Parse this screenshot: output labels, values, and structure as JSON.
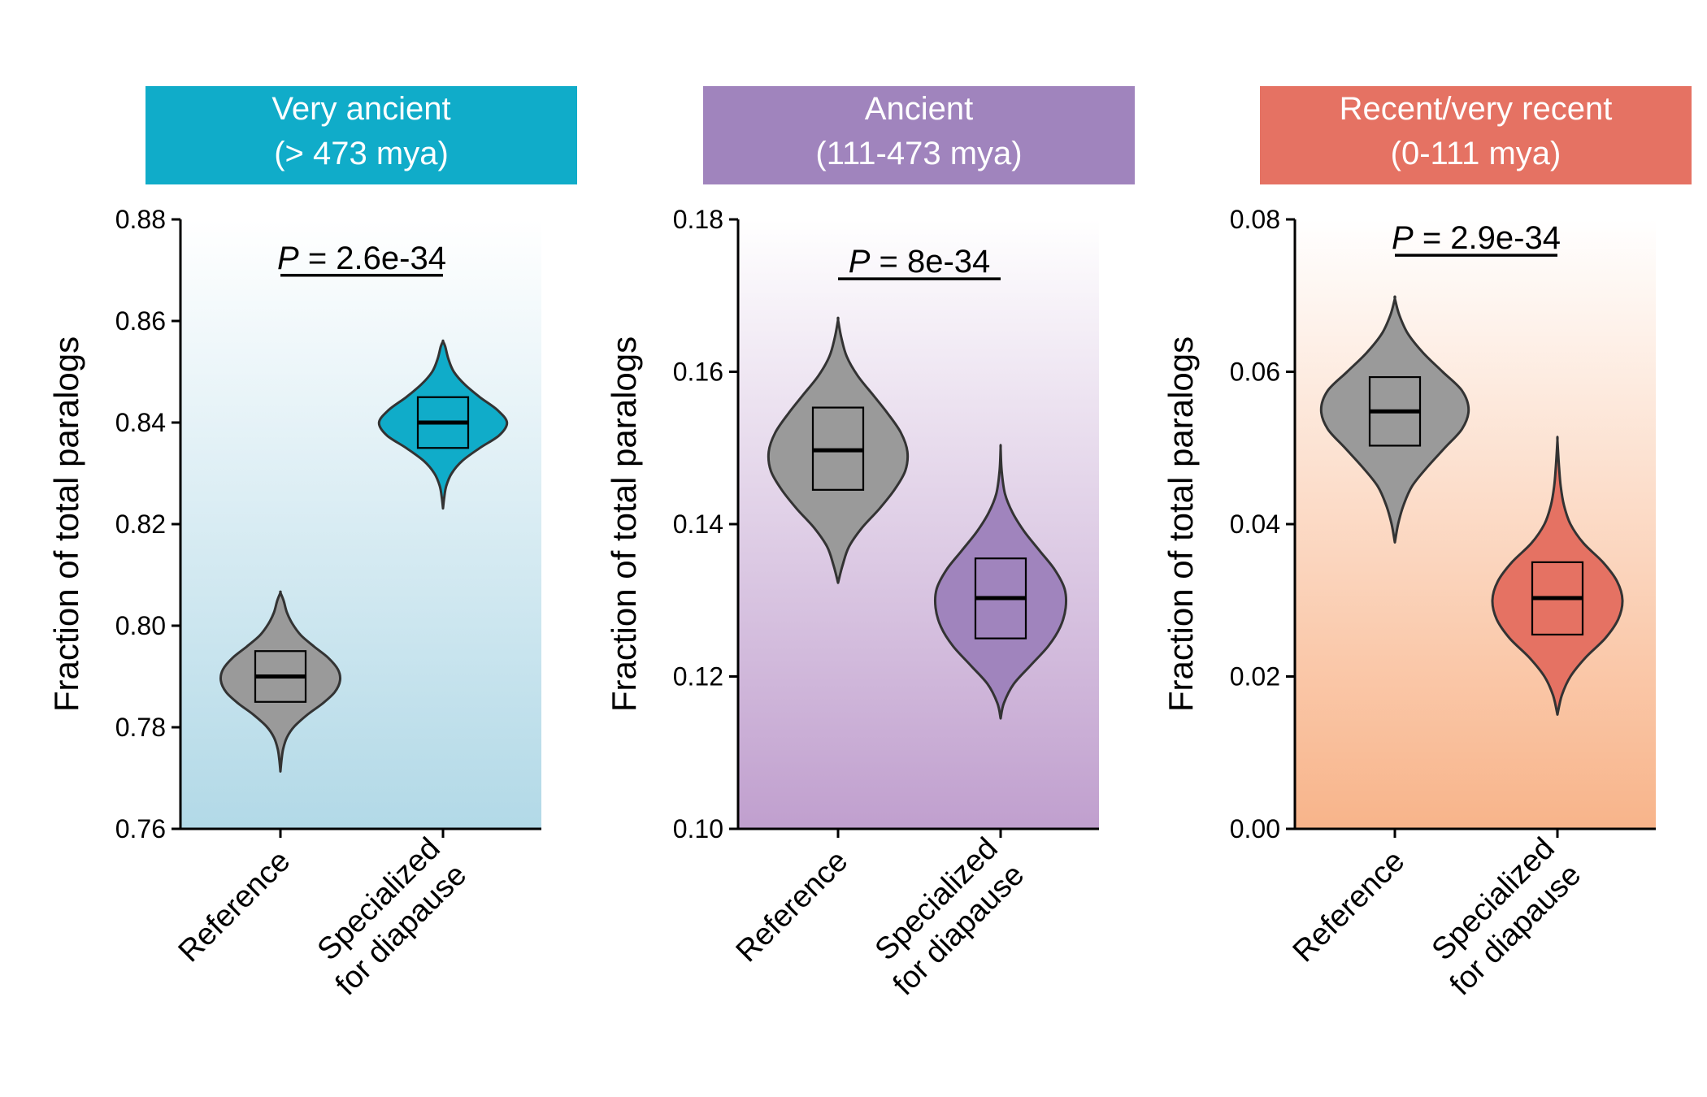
{
  "chart_data": [
    {
      "type": "violin",
      "title": "Very ancient",
      "subtitle": "(> 473 mya)",
      "title_bg": "#10ACC9",
      "gradient_top": "#FFFFFF",
      "gradient_bottom": "#B2D9E7",
      "accent": "#10ACC9",
      "ylabel": "Fraction of total paralogs",
      "ylim": [
        0.76,
        0.88
      ],
      "yticks": [
        0.76,
        0.78,
        0.8,
        0.82,
        0.84,
        0.86,
        0.88
      ],
      "ytick_labels": [
        "0.76",
        "0.78",
        "0.80",
        "0.82",
        "0.84",
        "0.86",
        "0.88"
      ],
      "categories": [
        "Reference",
        "Specialized for diapause"
      ],
      "category_lines": [
        [
          "Reference"
        ],
        [
          "Specialized",
          "for diapause"
        ]
      ],
      "p_prefix": "P",
      "p_text": " = 2.6e-34",
      "p_line_y": 0.869,
      "groups": [
        {
          "name": "Reference",
          "color": "#9A9A9A",
          "median": 0.79,
          "q1": 0.785,
          "q3": 0.795,
          "density": [
            [
              0.7713,
              0
            ],
            [
              0.7735,
              1
            ],
            [
              0.7757,
              2.5
            ],
            [
              0.778,
              6
            ],
            [
              0.7802,
              13
            ],
            [
              0.7825,
              25
            ],
            [
              0.7847,
              39
            ],
            [
              0.7869,
              50
            ],
            [
              0.7892,
              55
            ],
            [
              0.7914,
              53
            ],
            [
              0.7937,
              44
            ],
            [
              0.7959,
              31
            ],
            [
              0.7981,
              19
            ],
            [
              0.8004,
              11
            ],
            [
              0.8026,
              6
            ],
            [
              0.8049,
              3
            ],
            [
              0.8065,
              0
            ]
          ]
        },
        {
          "name": "Specialized for diapause",
          "color": "#10ACC9",
          "median": 0.84,
          "q1": 0.835,
          "q3": 0.845,
          "density": [
            [
              0.8231,
              0
            ],
            [
              0.825,
              1
            ],
            [
              0.8275,
              3
            ],
            [
              0.83,
              8
            ],
            [
              0.8325,
              18
            ],
            [
              0.835,
              34
            ],
            [
              0.8375,
              52
            ],
            [
              0.84,
              59
            ],
            [
              0.8425,
              50
            ],
            [
              0.845,
              34
            ],
            [
              0.8475,
              20
            ],
            [
              0.85,
              10
            ],
            [
              0.8525,
              5
            ],
            [
              0.855,
              2
            ],
            [
              0.856,
              0
            ]
          ]
        }
      ]
    },
    {
      "type": "violin",
      "title": "Ancient",
      "subtitle": "(111-473 mya)",
      "title_bg": "#A084BD",
      "gradient_top": "#FFFFFF",
      "gradient_bottom": "#C09FCE",
      "accent": "#A084BD",
      "ylabel": "Fraction of total paralogs",
      "ylim": [
        0.1,
        0.18
      ],
      "yticks": [
        0.1,
        0.12,
        0.14,
        0.16,
        0.18
      ],
      "ytick_labels": [
        "0.10",
        "0.12",
        "0.14",
        "0.16",
        "0.18"
      ],
      "categories": [
        "Reference",
        "Specialized for diapause"
      ],
      "category_lines": [
        [
          "Reference"
        ],
        [
          "Specialized",
          "for diapause"
        ]
      ],
      "p_prefix": "P",
      "p_text": " = 8e-34",
      "p_line_y": 0.1722,
      "groups": [
        {
          "name": "Reference",
          "color": "#9A9A9A",
          "median": 0.1497,
          "q1": 0.1445,
          "q3": 0.1553,
          "density": [
            [
              0.1323,
              0
            ],
            [
              0.1345,
              4
            ],
            [
              0.137,
              10
            ],
            [
              0.1395,
              22
            ],
            [
              0.142,
              38
            ],
            [
              0.1445,
              52
            ],
            [
              0.147,
              62
            ],
            [
              0.1495,
              64
            ],
            [
              0.152,
              58
            ],
            [
              0.1545,
              46
            ],
            [
              0.157,
              32
            ],
            [
              0.1595,
              18
            ],
            [
              0.162,
              8
            ],
            [
              0.1645,
              3
            ],
            [
              0.1668,
              0
            ]
          ]
        },
        {
          "name": "Specialized for diapause",
          "color": "#A084BD",
          "median": 0.1303,
          "q1": 0.125,
          "q3": 0.1355,
          "density": [
            [
              0.1145,
              0
            ],
            [
              0.1165,
              3
            ],
            [
              0.119,
              12
            ],
            [
              0.1215,
              28
            ],
            [
              0.124,
              44
            ],
            [
              0.1265,
              55
            ],
            [
              0.129,
              60
            ],
            [
              0.1315,
              59
            ],
            [
              0.134,
              50
            ],
            [
              0.1365,
              36
            ],
            [
              0.139,
              22
            ],
            [
              0.1415,
              11
            ],
            [
              0.144,
              4
            ],
            [
              0.147,
              1
            ],
            [
              0.15,
              0
            ]
          ]
        }
      ]
    },
    {
      "type": "violin",
      "title": "Recent/very recent",
      "subtitle": "(0-111 mya)",
      "title_bg": "#E57263",
      "gradient_top": "#FFFFFF",
      "gradient_bottom": "#F8B48A",
      "accent": "#E57263",
      "ylabel": "Fraction of total paralogs",
      "ylim": [
        0.0,
        0.08
      ],
      "yticks": [
        0.0,
        0.02,
        0.04,
        0.06,
        0.08
      ],
      "ytick_labels": [
        "0.00",
        "0.02",
        "0.04",
        "0.06",
        "0.08"
      ],
      "categories": [
        "Reference",
        "Specialized for diapause"
      ],
      "category_lines": [
        [
          "Reference"
        ],
        [
          "Specialized",
          "for diapause"
        ]
      ],
      "p_prefix": "P",
      "p_text": " = 2.9e-34",
      "p_line_y": 0.0753,
      "groups": [
        {
          "name": "Reference",
          "color": "#9A9A9A",
          "median": 0.0548,
          "q1": 0.0503,
          "q3": 0.0593,
          "density": [
            [
              0.0376,
              0
            ],
            [
              0.04,
              3
            ],
            [
              0.0425,
              8
            ],
            [
              0.045,
              16
            ],
            [
              0.0475,
              30
            ],
            [
              0.05,
              46
            ],
            [
              0.0525,
              62
            ],
            [
              0.055,
              68
            ],
            [
              0.0575,
              62
            ],
            [
              0.06,
              44
            ],
            [
              0.0625,
              26
            ],
            [
              0.065,
              12
            ],
            [
              0.0675,
              4
            ],
            [
              0.0696,
              0
            ]
          ]
        },
        {
          "name": "Specialized for diapause",
          "color": "#E57263",
          "median": 0.0303,
          "q1": 0.0255,
          "q3": 0.035,
          "density": [
            [
              0.015,
              0
            ],
            [
              0.0175,
              4
            ],
            [
              0.02,
              12
            ],
            [
              0.0225,
              26
            ],
            [
              0.025,
              44
            ],
            [
              0.0275,
              56
            ],
            [
              0.03,
              60
            ],
            [
              0.0325,
              55
            ],
            [
              0.035,
              42
            ],
            [
              0.0375,
              24
            ],
            [
              0.04,
              12
            ],
            [
              0.0425,
              6
            ],
            [
              0.045,
              3
            ],
            [
              0.0475,
              1.5
            ],
            [
              0.051,
              0
            ]
          ]
        }
      ]
    }
  ]
}
